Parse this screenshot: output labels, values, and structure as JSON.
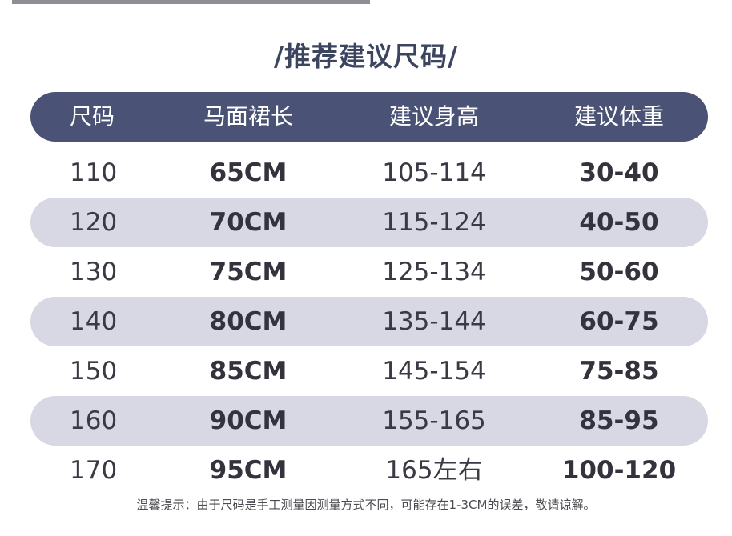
{
  "header": {
    "title": "/推荐建议尺码/"
  },
  "table": {
    "columns": [
      "尺码",
      "马面裙长",
      "建议身高",
      "建议体重"
    ],
    "rows": [
      [
        "110",
        "65CM",
        "105-114",
        "30-40"
      ],
      [
        "120",
        "70CM",
        "115-124",
        "40-50"
      ],
      [
        "130",
        "75CM",
        "125-134",
        "50-60"
      ],
      [
        "140",
        "80CM",
        "135-144",
        "60-75"
      ],
      [
        "150",
        "85CM",
        "145-154",
        "75-85"
      ],
      [
        "160",
        "90CM",
        "155-165",
        "85-95"
      ],
      [
        "170",
        "95CM",
        "165左右",
        "100-120"
      ]
    ]
  },
  "footer": {
    "note": "温馨提示：由于尺码是手工测量因测量方式不同，可能存在1-3CM的误差，敬请谅解。"
  }
}
